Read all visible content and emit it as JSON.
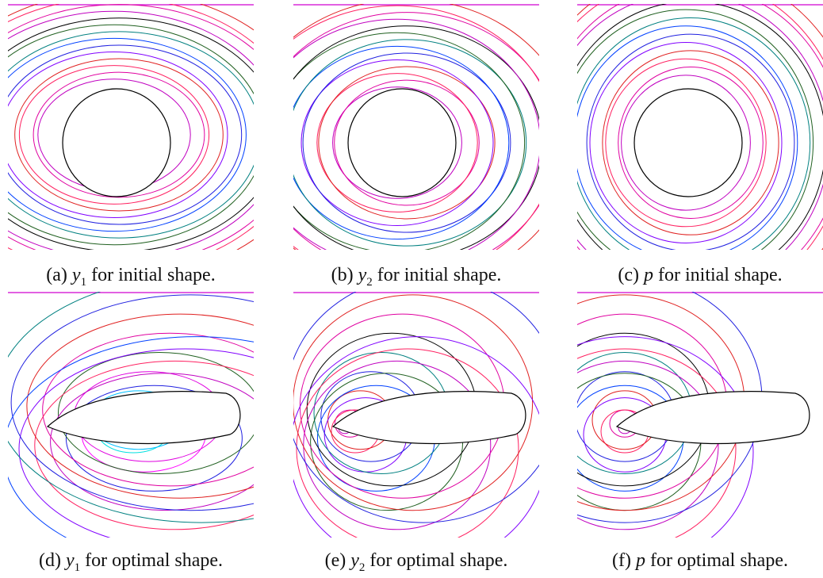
{
  "panels": [
    {
      "label": "(a)",
      "symbol": "y",
      "sub": "1",
      "text": "for initial shape."
    },
    {
      "label": "(b)",
      "symbol": "y",
      "sub": "2",
      "text": "for initial shape."
    },
    {
      "label": "(c)",
      "symbol": "p",
      "text": "for initial shape."
    },
    {
      "label": "(d)",
      "symbol": "y",
      "sub": "1",
      "text": "for optimal shape."
    },
    {
      "label": "(e)",
      "symbol": "y",
      "sub": "2",
      "text": "for optimal shape."
    },
    {
      "label": "(f)",
      "symbol": "p",
      "text": "for optimal shape."
    }
  ]
}
